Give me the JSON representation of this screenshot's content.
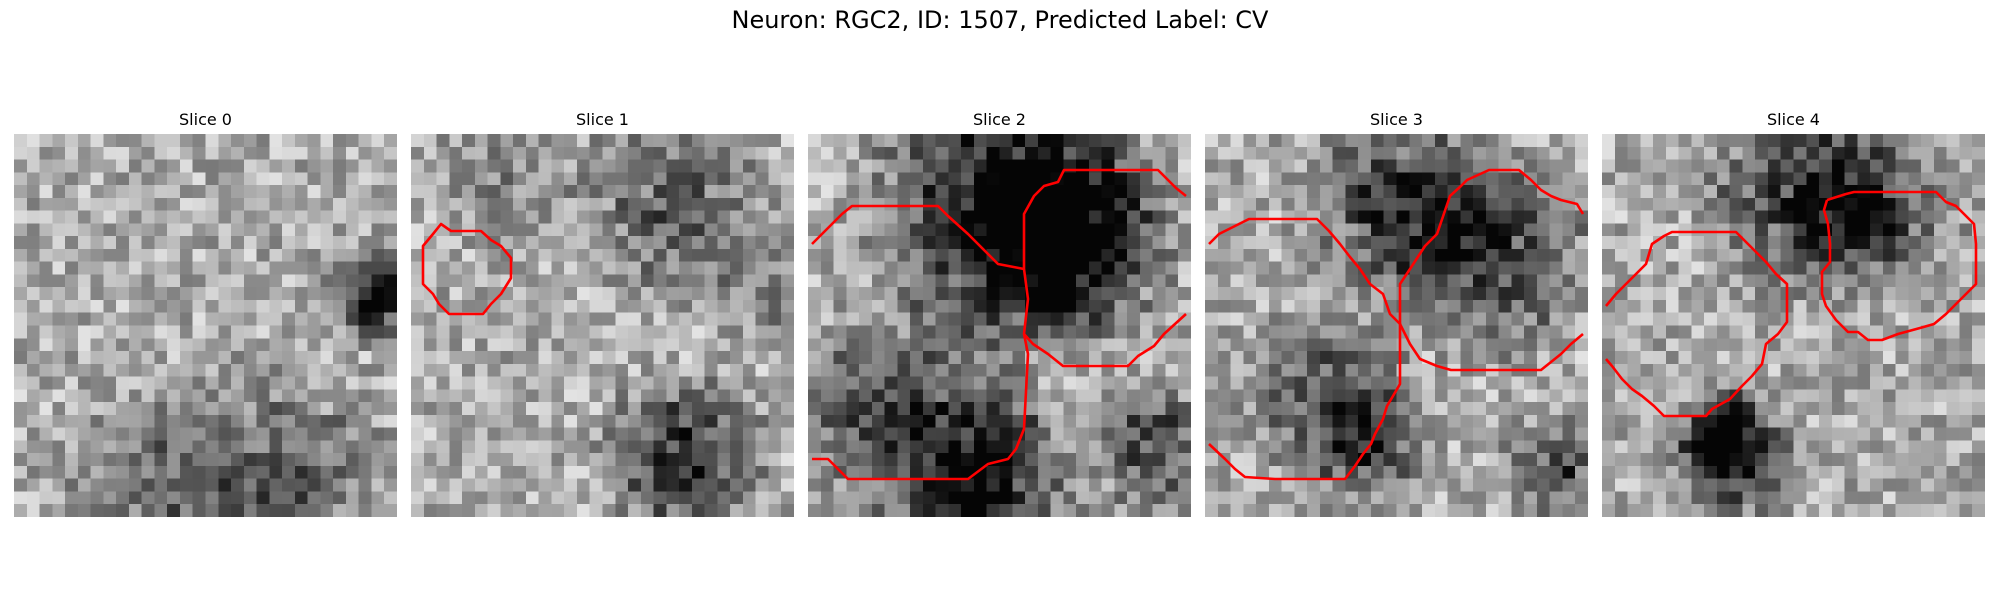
{
  "figure": {
    "title": "Neuron: RGC2, ID: 1507, Predicted Label: CV"
  },
  "colors": {
    "contour": "#ff0000",
    "background": "#ffffff"
  },
  "panels": [
    {
      "title": "Slice 0"
    },
    {
      "title": "Slice 1"
    },
    {
      "title": "Slice 2"
    },
    {
      "title": "Slice 3"
    },
    {
      "title": "Slice 4"
    }
  ]
}
